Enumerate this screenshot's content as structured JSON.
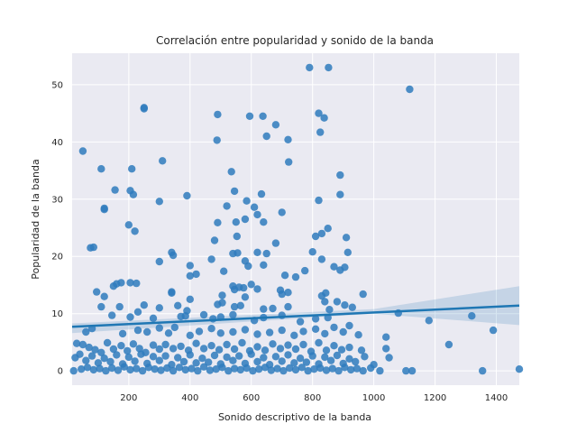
{
  "chart_data": {
    "type": "scatter",
    "title": "Correlación entre popularidad y sonido de la banda",
    "xlabel": "Sonido descriptivo de la banda",
    "ylabel": "Popularidad de la banda",
    "xlim": [
      15,
      1475
    ],
    "ylim": [
      -2.5,
      55.5
    ],
    "xticks": [
      200,
      400,
      600,
      800,
      1000,
      1200,
      1400
    ],
    "yticks": [
      0,
      10,
      20,
      30,
      40,
      50
    ],
    "grid": true,
    "style": "seaborn-darkgrid",
    "colors": {
      "background": "#eaeaf2",
      "grid": "#ffffff",
      "points": "#2f7bbd",
      "line": "#1f77b4",
      "band": "#1f77b4"
    },
    "regression": {
      "line": [
        [
          15,
          7.7
        ],
        [
          1475,
          11.4
        ]
      ],
      "ci_upper": [
        [
          15,
          8.3
        ],
        [
          1000,
          10.8
        ],
        [
          1475,
          14.8
        ]
      ],
      "ci_lower": [
        [
          15,
          6.6
        ],
        [
          1000,
          10.0
        ],
        [
          1475,
          8.0
        ]
      ]
    },
    "points": [
      [
        790,
        53
      ],
      [
        852,
        53
      ],
      [
        1117,
        49.2
      ],
      [
        250,
        46
      ],
      [
        250,
        45.8
      ],
      [
        490,
        44.8
      ],
      [
        820,
        45
      ],
      [
        838,
        44.2
      ],
      [
        595,
        44.5
      ],
      [
        638,
        44.5
      ],
      [
        680,
        43
      ],
      [
        650,
        41
      ],
      [
        488,
        40.3
      ],
      [
        720,
        40.4
      ],
      [
        825,
        41.7
      ],
      [
        50,
        38.4
      ],
      [
        310,
        36.7
      ],
      [
        722,
        36.5
      ],
      [
        535,
        34.8
      ],
      [
        110,
        35.3
      ],
      [
        210,
        35.3
      ],
      [
        890,
        34.2
      ],
      [
        155,
        31.6
      ],
      [
        205,
        31.5
      ],
      [
        545,
        31.4
      ],
      [
        215,
        30.8
      ],
      [
        390,
        30.6
      ],
      [
        633,
        30.9
      ],
      [
        890,
        30.8
      ],
      [
        300,
        29.6
      ],
      [
        585,
        29.7
      ],
      [
        820,
        29.8
      ],
      [
        610,
        28.6
      ],
      [
        520,
        28.8
      ],
      [
        120,
        28.4
      ],
      [
        120,
        28.2
      ],
      [
        700,
        27.7
      ],
      [
        620,
        27.3
      ],
      [
        640,
        26
      ],
      [
        580,
        26.5
      ],
      [
        490,
        25.9
      ],
      [
        550,
        26
      ],
      [
        200,
        25.5
      ],
      [
        220,
        24.4
      ],
      [
        850,
        24.9
      ],
      [
        830,
        24
      ],
      [
        810,
        23.5
      ],
      [
        910,
        23.3
      ],
      [
        553,
        23.5
      ],
      [
        480,
        22.8
      ],
      [
        680,
        22.3
      ],
      [
        75,
        21.5
      ],
      [
        85,
        21.6
      ],
      [
        340,
        20.7
      ],
      [
        345,
        20.2
      ],
      [
        540,
        20.5
      ],
      [
        555,
        20.6
      ],
      [
        620,
        20.7
      ],
      [
        650,
        20.5
      ],
      [
        800,
        20.8
      ],
      [
        915,
        20.7
      ],
      [
        830,
        19.5
      ],
      [
        470,
        19.5
      ],
      [
        300,
        19.1
      ],
      [
        580,
        19.2
      ],
      [
        590,
        18.3
      ],
      [
        640,
        18.5
      ],
      [
        400,
        18.4
      ],
      [
        870,
        18.2
      ],
      [
        905,
        18.1
      ],
      [
        890,
        17.6
      ],
      [
        775,
        17.5
      ],
      [
        420,
        16.9
      ],
      [
        400,
        16.6
      ],
      [
        510,
        17.4
      ],
      [
        710,
        16.7
      ],
      [
        745,
        16.4
      ],
      [
        160,
        15.2
      ],
      [
        175,
        15.4
      ],
      [
        205,
        15.4
      ],
      [
        225,
        15.3
      ],
      [
        150,
        14.8
      ],
      [
        540,
        14.8
      ],
      [
        560,
        14.6
      ],
      [
        545,
        14.2
      ],
      [
        575,
        14.5
      ],
      [
        600,
        15.1
      ],
      [
        620,
        14.3
      ],
      [
        695,
        14.1
      ],
      [
        720,
        13.7
      ],
      [
        700,
        13.4
      ],
      [
        580,
        12.9
      ],
      [
        340,
        13.8
      ],
      [
        340,
        13.6
      ],
      [
        400,
        12.5
      ],
      [
        505,
        13.2
      ],
      [
        830,
        13.1
      ],
      [
        843,
        13.6
      ],
      [
        840,
        12.1
      ],
      [
        880,
        12.1
      ],
      [
        965,
        13.4
      ],
      [
        120,
        13
      ],
      [
        95,
        13.8
      ],
      [
        170,
        11.2
      ],
      [
        110,
        11.2
      ],
      [
        250,
        11.5
      ],
      [
        300,
        11
      ],
      [
        360,
        11.4
      ],
      [
        390,
        10.5
      ],
      [
        490,
        11.6
      ],
      [
        505,
        11.9
      ],
      [
        545,
        11.2
      ],
      [
        565,
        11.4
      ],
      [
        640,
        10.8
      ],
      [
        670,
        10.9
      ],
      [
        720,
        11.2
      ],
      [
        855,
        10.7
      ],
      [
        905,
        11.5
      ],
      [
        930,
        11.1
      ],
      [
        145,
        9.7
      ],
      [
        205,
        9.4
      ],
      [
        230,
        10.3
      ],
      [
        280,
        9.2
      ],
      [
        370,
        9.5
      ],
      [
        385,
        9.6
      ],
      [
        445,
        9.8
      ],
      [
        475,
        9.1
      ],
      [
        500,
        9.4
      ],
      [
        540,
        9.8
      ],
      [
        610,
        8.8
      ],
      [
        640,
        9.3
      ],
      [
        700,
        9.7
      ],
      [
        760,
        8.6
      ],
      [
        810,
        9.1
      ],
      [
        850,
        9.3
      ],
      [
        920,
        7.9
      ],
      [
        1080,
        10.1
      ],
      [
        1180,
        8.8
      ],
      [
        1320,
        9.6
      ],
      [
        1390,
        7.1
      ],
      [
        60,
        6.8
      ],
      [
        80,
        7.4
      ],
      [
        180,
        6.5
      ],
      [
        230,
        7.1
      ],
      [
        260,
        6.8
      ],
      [
        300,
        7.5
      ],
      [
        330,
        6.6
      ],
      [
        350,
        7.6
      ],
      [
        400,
        6.2
      ],
      [
        430,
        6.9
      ],
      [
        470,
        7.4
      ],
      [
        500,
        6.6
      ],
      [
        540,
        6.8
      ],
      [
        580,
        7.2
      ],
      [
        620,
        6.4
      ],
      [
        660,
        6.7
      ],
      [
        700,
        7.1
      ],
      [
        740,
        6.2
      ],
      [
        770,
        6.9
      ],
      [
        810,
        7.3
      ],
      [
        840,
        6.5
      ],
      [
        870,
        7.6
      ],
      [
        900,
        6.8
      ],
      [
        950,
        6.3
      ],
      [
        1040,
        5.9
      ],
      [
        30,
        4.8
      ],
      [
        50,
        4.6
      ],
      [
        70,
        4.1
      ],
      [
        90,
        3.7
      ],
      [
        110,
        3.2
      ],
      [
        130,
        4.9
      ],
      [
        150,
        3.8
      ],
      [
        175,
        4.4
      ],
      [
        195,
        3.5
      ],
      [
        215,
        4.7
      ],
      [
        235,
        3.9
      ],
      [
        255,
        3.2
      ],
      [
        280,
        4.5
      ],
      [
        300,
        3.8
      ],
      [
        320,
        4.6
      ],
      [
        345,
        3.9
      ],
      [
        370,
        4.3
      ],
      [
        395,
        3.6
      ],
      [
        420,
        4.8
      ],
      [
        445,
        3.9
      ],
      [
        470,
        4.4
      ],
      [
        495,
        3.7
      ],
      [
        520,
        4.6
      ],
      [
        545,
        3.8
      ],
      [
        570,
        4.9
      ],
      [
        595,
        3.5
      ],
      [
        620,
        4.2
      ],
      [
        645,
        3.6
      ],
      [
        670,
        4.7
      ],
      [
        695,
        3.9
      ],
      [
        720,
        4.5
      ],
      [
        745,
        3.8
      ],
      [
        770,
        4.6
      ],
      [
        795,
        3.4
      ],
      [
        820,
        4.9
      ],
      [
        845,
        3.6
      ],
      [
        870,
        4.4
      ],
      [
        895,
        3.7
      ],
      [
        920,
        4.1
      ],
      [
        960,
        3.6
      ],
      [
        1040,
        3.9
      ],
      [
        1245,
        4.6
      ],
      [
        25,
        2.3
      ],
      [
        40,
        2.9
      ],
      [
        60,
        1.8
      ],
      [
        80,
        2.6
      ],
      [
        100,
        1.4
      ],
      [
        120,
        2.2
      ],
      [
        140,
        1.6
      ],
      [
        160,
        2.8
      ],
      [
        180,
        1.2
      ],
      [
        200,
        2.4
      ],
      [
        220,
        1.7
      ],
      [
        240,
        2.9
      ],
      [
        260,
        1.3
      ],
      [
        280,
        2.5
      ],
      [
        300,
        1.8
      ],
      [
        320,
        2.6
      ],
      [
        340,
        1.1
      ],
      [
        360,
        2.3
      ],
      [
        380,
        1.6
      ],
      [
        400,
        2.8
      ],
      [
        420,
        1.4
      ],
      [
        440,
        2.2
      ],
      [
        460,
        1.5
      ],
      [
        480,
        2.7
      ],
      [
        500,
        1.2
      ],
      [
        520,
        2.4
      ],
      [
        540,
        1.8
      ],
      [
        560,
        2.6
      ],
      [
        580,
        1.3
      ],
      [
        600,
        2.9
      ],
      [
        620,
        1.6
      ],
      [
        640,
        2.3
      ],
      [
        660,
        1.1
      ],
      [
        680,
        2.5
      ],
      [
        700,
        1.7
      ],
      [
        720,
        2.8
      ],
      [
        740,
        1.4
      ],
      [
        760,
        2.2
      ],
      [
        780,
        1.5
      ],
      [
        800,
        2.6
      ],
      [
        820,
        1.2
      ],
      [
        840,
        2.4
      ],
      [
        860,
        1.8
      ],
      [
        880,
        2.7
      ],
      [
        900,
        1.3
      ],
      [
        920,
        2.1
      ],
      [
        940,
        1.6
      ],
      [
        970,
        2.5
      ],
      [
        1000,
        1.1
      ],
      [
        1050,
        2.3
      ],
      [
        20,
        0
      ],
      [
        45,
        0.3
      ],
      [
        65,
        0.6
      ],
      [
        85,
        0.2
      ],
      [
        105,
        0.4
      ],
      [
        125,
        0
      ],
      [
        145,
        0.5
      ],
      [
        165,
        0.1
      ],
      [
        185,
        0.7
      ],
      [
        205,
        0.2
      ],
      [
        225,
        0.4
      ],
      [
        245,
        0
      ],
      [
        265,
        0.6
      ],
      [
        285,
        0.3
      ],
      [
        305,
        0.1
      ],
      [
        325,
        0.5
      ],
      [
        345,
        0
      ],
      [
        365,
        0.6
      ],
      [
        385,
        0.2
      ],
      [
        405,
        0.4
      ],
      [
        425,
        0
      ],
      [
        445,
        0.7
      ],
      [
        465,
        0.1
      ],
      [
        485,
        0.3
      ],
      [
        505,
        0.6
      ],
      [
        525,
        0
      ],
      [
        545,
        0.4
      ],
      [
        565,
        0.2
      ],
      [
        585,
        0.5
      ],
      [
        605,
        0
      ],
      [
        625,
        0.3
      ],
      [
        645,
        0.6
      ],
      [
        665,
        0.1
      ],
      [
        685,
        0.4
      ],
      [
        705,
        0
      ],
      [
        725,
        0.5
      ],
      [
        745,
        0.2
      ],
      [
        765,
        0.6
      ],
      [
        785,
        0
      ],
      [
        805,
        0.3
      ],
      [
        825,
        0.5
      ],
      [
        845,
        0.1
      ],
      [
        865,
        0.4
      ],
      [
        885,
        0
      ],
      [
        905,
        0.6
      ],
      [
        925,
        0.2
      ],
      [
        945,
        0.4
      ],
      [
        965,
        0
      ],
      [
        990,
        0.5
      ],
      [
        1020,
        0
      ],
      [
        1105,
        0
      ],
      [
        1125,
        0
      ],
      [
        1355,
        0
      ],
      [
        1475,
        0.3
      ]
    ]
  }
}
